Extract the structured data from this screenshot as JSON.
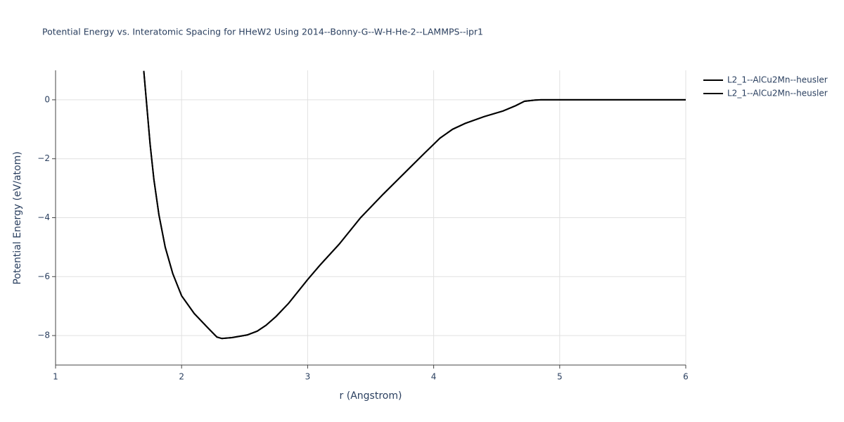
{
  "chart_data": {
    "type": "line",
    "title": "Potential Energy vs. Interatomic Spacing for HHeW2 Using 2014--Bonny-G--W-H-He-2--LAMMPS--ipr1",
    "x_label": "r (Angstrom)",
    "y_label": "Potential Energy (eV/atom)",
    "x": [
      1.7,
      1.75,
      1.78,
      1.82,
      1.87,
      1.93,
      2.0,
      2.1,
      2.2,
      2.28,
      2.32,
      2.4,
      2.52,
      2.6,
      2.67,
      2.75,
      2.85,
      3.0,
      3.1,
      3.25,
      3.42,
      3.6,
      3.8,
      3.93,
      4.05,
      4.15,
      4.25,
      4.4,
      4.55,
      4.65,
      4.72,
      4.8,
      4.85,
      5.0,
      6.0
    ],
    "series": [
      {
        "name": "L2_1--AlCu2Mn--heusler",
        "color": "#000000",
        "values": [
          0.98,
          -1.5,
          -2.7,
          -3.9,
          -5.0,
          -5.9,
          -6.65,
          -7.25,
          -7.7,
          -8.05,
          -8.1,
          -8.07,
          -7.98,
          -7.85,
          -7.65,
          -7.35,
          -6.9,
          -6.1,
          -5.6,
          -4.9,
          -4.0,
          -3.2,
          -2.35,
          -1.8,
          -1.3,
          -1.0,
          -0.8,
          -0.57,
          -0.38,
          -0.2,
          -0.05,
          -0.01,
          0,
          0,
          0
        ]
      },
      {
        "name": "L2_1--AlCu2Mn--heusler",
        "color": "#000000",
        "values": [
          0.98,
          -1.5,
          -2.7,
          -3.9,
          -5.0,
          -5.9,
          -6.65,
          -7.25,
          -7.7,
          -8.05,
          -8.1,
          -8.07,
          -7.98,
          -7.85,
          -7.65,
          -7.35,
          -6.9,
          -6.1,
          -5.6,
          -4.9,
          -4.0,
          -3.2,
          -2.35,
          -1.8,
          -1.3,
          -1.0,
          -0.8,
          -0.57,
          -0.38,
          -0.2,
          -0.05,
          -0.01,
          0,
          0,
          0
        ]
      }
    ],
    "xlim": [
      1,
      6
    ],
    "xticks": [
      1,
      2,
      3,
      4,
      5,
      6
    ],
    "ylim": [
      -9,
      1
    ],
    "yticks": [
      {
        "value": -8,
        "label": "−8"
      },
      {
        "value": -6,
        "label": "−6"
      },
      {
        "value": -4,
        "label": "−4"
      },
      {
        "value": -2,
        "label": "−2"
      },
      0
    ],
    "grid": true,
    "legend": "top-right"
  }
}
